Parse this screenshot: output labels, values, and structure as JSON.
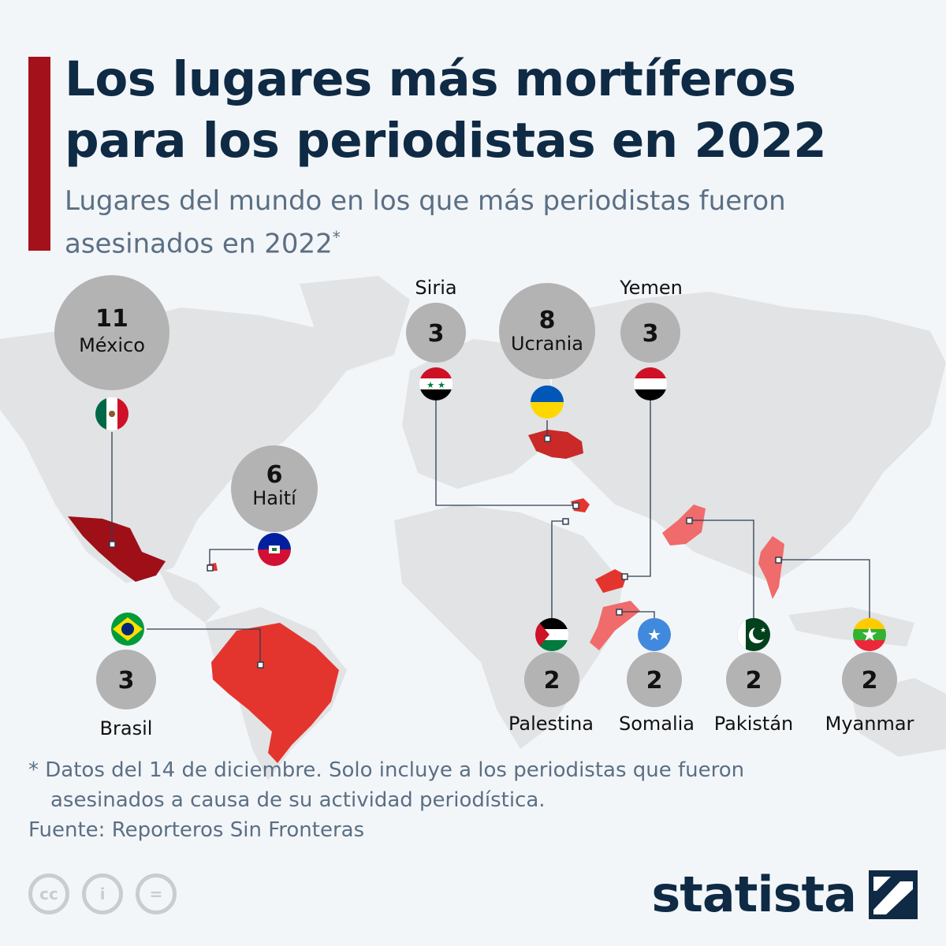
{
  "title": "Los lugares más mortíferos para los periodistas en 2022",
  "subtitle": "Lugares del mundo en los que más periodistas fueron asesinados en 2022",
  "subtitle_mark": "*",
  "note": "* Datos del 14 de diciembre. Solo incluye a los periodistas que fueron asesinados a causa de su actividad periodística.",
  "source": "Fuente: Reporteros Sin Fronteras",
  "brand": "statista",
  "license": {
    "cc": "cc",
    "by": "i",
    "nd": "="
  },
  "colors": {
    "accent": "#a3121b",
    "title": "#0f2a44",
    "bubble": "#b3b3b3",
    "map_land": "#e1e3e5",
    "highlight_dark": "#9e0f18",
    "highlight_mid": "#c92a27",
    "highlight_red": "#e3352d",
    "highlight_light": "#f06b6b"
  },
  "countries": [
    {
      "name": "México",
      "value": "11",
      "flag": "mexico-flag-icon"
    },
    {
      "name": "Ucrania",
      "value": "8",
      "flag": "ukraine-flag-icon"
    },
    {
      "name": "Haití",
      "value": "6",
      "flag": "haiti-flag-icon"
    },
    {
      "name": "Siria",
      "value": "3",
      "flag": "syria-flag-icon"
    },
    {
      "name": "Yemen",
      "value": "3",
      "flag": "yemen-flag-icon"
    },
    {
      "name": "Brasil",
      "value": "3",
      "flag": "brazil-flag-icon"
    },
    {
      "name": "Palestina",
      "value": "2",
      "flag": "palestine-flag-icon"
    },
    {
      "name": "Somalia",
      "value": "2",
      "flag": "somalia-flag-icon"
    },
    {
      "name": "Pakistán",
      "value": "2",
      "flag": "pakistan-flag-icon"
    },
    {
      "name": "Myanmar",
      "value": "2",
      "flag": "myanmar-flag-icon"
    }
  ]
}
